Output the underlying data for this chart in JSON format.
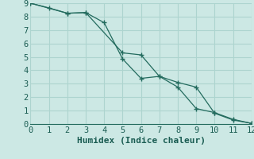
{
  "xlabel": "Humidex (Indice chaleur)",
  "bg_color": "#cce8e4",
  "grid_color": "#add4cf",
  "line_color": "#236b5e",
  "xlim": [
    0,
    12
  ],
  "ylim": [
    0,
    9
  ],
  "xticks": [
    0,
    1,
    2,
    3,
    4,
    5,
    6,
    7,
    8,
    9,
    10,
    11,
    12
  ],
  "yticks": [
    0,
    1,
    2,
    3,
    4,
    5,
    6,
    7,
    8,
    9
  ],
  "line1_x": [
    0,
    1,
    2,
    3,
    4,
    5,
    6,
    7,
    8,
    9,
    10,
    11,
    12
  ],
  "line1_y": [
    9,
    8.65,
    8.25,
    8.3,
    7.55,
    4.85,
    3.4,
    3.55,
    2.75,
    1.15,
    0.85,
    0.35,
    0.05
  ],
  "line2_x": [
    0,
    2,
    3,
    5,
    6,
    7,
    8,
    9,
    10,
    11,
    12
  ],
  "line2_y": [
    9,
    8.25,
    8.3,
    5.3,
    5.15,
    3.55,
    3.1,
    2.75,
    0.8,
    0.3,
    0.05
  ],
  "tick_color": "#1a5c52",
  "label_color": "#1a5c52",
  "tick_fontsize": 7.5,
  "xlabel_fontsize": 8.0
}
